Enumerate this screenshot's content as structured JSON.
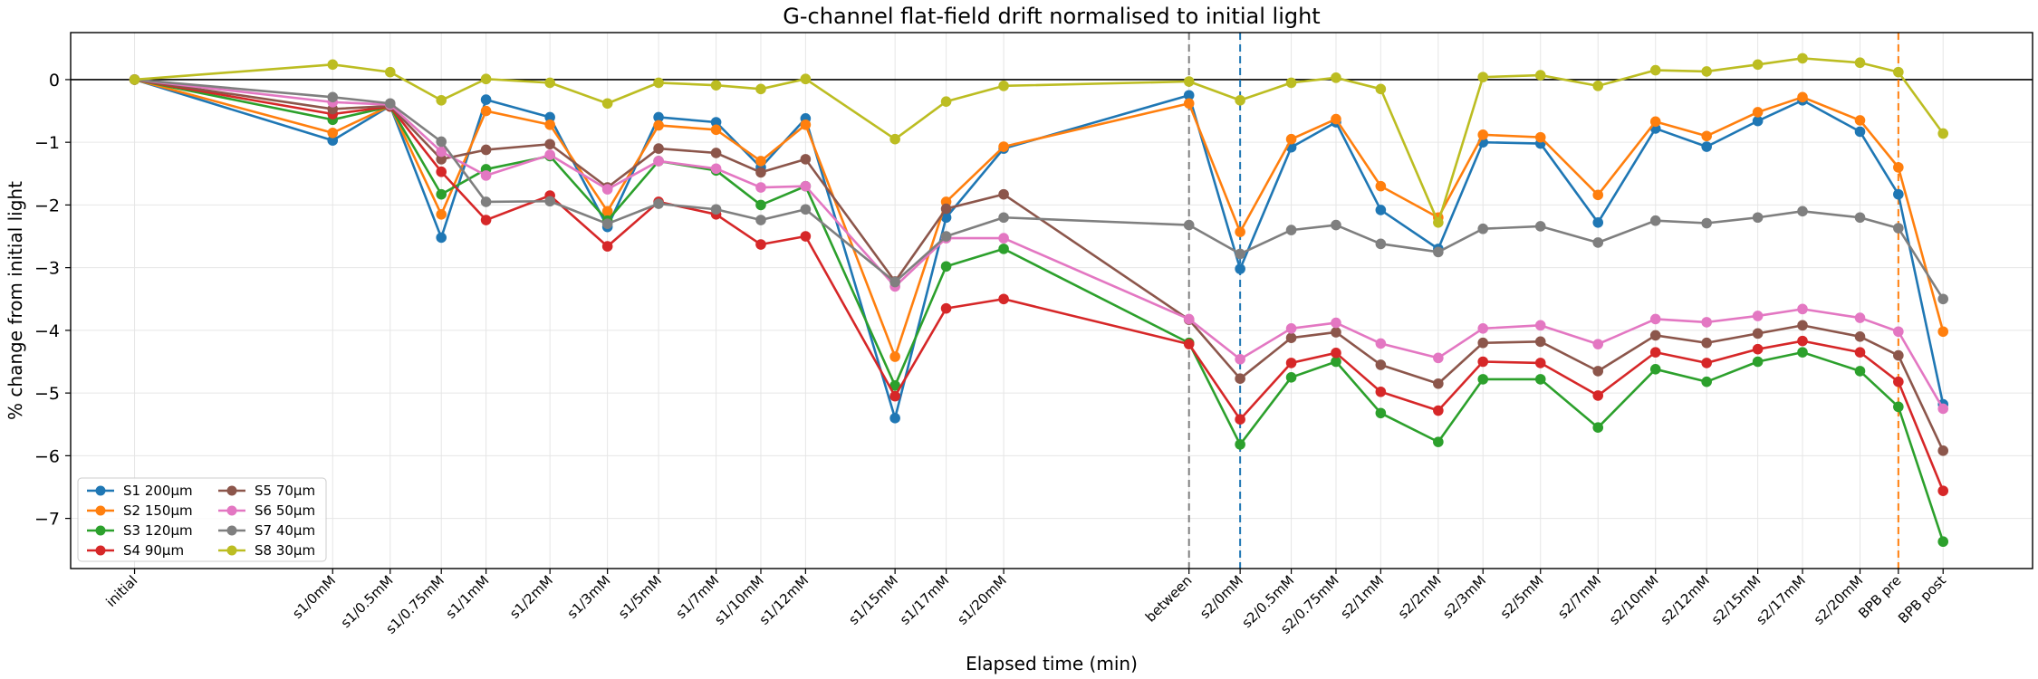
{
  "chart_data": {
    "type": "line",
    "title": "G-channel flat-field drift normalised to initial light",
    "xlabel": "Elapsed time (min)",
    "ylabel": "% change from initial light",
    "ylim": [
      -7.8,
      0.75
    ],
    "yticks": [
      0,
      -1,
      -2,
      -3,
      -4,
      -5,
      -6,
      -7
    ],
    "grid": true,
    "legend_position": "lower-left",
    "x": [
      0,
      31,
      40,
      48,
      55,
      65,
      74,
      82,
      91,
      98,
      105,
      119,
      127,
      136,
      165,
      173,
      181,
      188,
      195,
      204,
      211,
      220,
      229,
      238,
      246,
      254,
      261,
      270,
      276,
      283
    ],
    "categories": [
      "initial",
      "s1/0mM",
      "s1/0.5mM",
      "s1/0.75mM",
      "s1/1mM",
      "s1/2mM",
      "s1/3mM",
      "s1/5mM",
      "s1/7mM",
      "s1/10mM",
      "s1/12mM",
      "s1/15mM",
      "s1/17mM",
      "s1/20mM",
      "between",
      "s2/0mM",
      "s2/0.5mM",
      "s2/0.75mM",
      "s2/1mM",
      "s2/2mM",
      "s2/3mM",
      "s2/5mM",
      "s2/7mM",
      "s2/10mM",
      "s2/12mM",
      "s2/15mM",
      "s2/17mM",
      "s2/20mM",
      "BPB pre",
      "BPB post"
    ],
    "vlines": [
      {
        "x": 165,
        "color": "#7f7f7f"
      },
      {
        "x": 173,
        "color": "#1f77b4"
      },
      {
        "x": 276,
        "color": "#ff7f0e"
      }
    ],
    "hline": 0,
    "series": [
      {
        "name": "S1 200µm",
        "color": "#1f77b4",
        "values": [
          0,
          -0.97,
          -0.42,
          -2.52,
          -0.32,
          -0.6,
          -2.35,
          -0.6,
          -0.68,
          -1.4,
          -0.62,
          -5.4,
          -2.2,
          -1.1,
          -0.25,
          -3.02,
          -1.08,
          -0.68,
          -2.08,
          -2.7,
          -1.0,
          -1.02,
          -2.28,
          -0.78,
          -1.07,
          -0.66,
          -0.33,
          -0.83,
          -1.83,
          -5.18
        ]
      },
      {
        "name": "S2 150µm",
        "color": "#ff7f0e",
        "values": [
          0,
          -0.85,
          -0.42,
          -2.15,
          -0.5,
          -0.72,
          -2.1,
          -0.73,
          -0.8,
          -1.3,
          -0.72,
          -4.42,
          -1.95,
          -1.07,
          -0.38,
          -2.43,
          -0.95,
          -0.63,
          -1.7,
          -2.2,
          -0.88,
          -0.92,
          -1.84,
          -0.67,
          -0.9,
          -0.52,
          -0.28,
          -0.65,
          -1.4,
          -4.02
        ]
      },
      {
        "name": "S3 120µm",
        "color": "#2ca02c",
        "values": [
          0,
          -0.64,
          -0.43,
          -1.83,
          -1.43,
          -1.22,
          -2.25,
          -1.3,
          -1.45,
          -2.0,
          -1.7,
          -4.88,
          -2.98,
          -2.7,
          -4.2,
          -5.82,
          -4.75,
          -4.5,
          -5.32,
          -5.78,
          -4.78,
          -4.78,
          -5.55,
          -4.62,
          -4.82,
          -4.5,
          -4.35,
          -4.65,
          -5.22,
          -7.37
        ]
      },
      {
        "name": "S4 90µm",
        "color": "#d62728",
        "values": [
          0,
          -0.55,
          -0.43,
          -1.47,
          -2.24,
          -1.85,
          -2.66,
          -1.95,
          -2.15,
          -2.63,
          -2.5,
          -5.05,
          -3.65,
          -3.5,
          -4.22,
          -5.42,
          -4.52,
          -4.36,
          -4.98,
          -5.28,
          -4.5,
          -4.52,
          -5.04,
          -4.35,
          -4.52,
          -4.3,
          -4.17,
          -4.35,
          -4.82,
          -6.56
        ]
      },
      {
        "name": "S5 70µm",
        "color": "#8c564b",
        "values": [
          0,
          -0.47,
          -0.42,
          -1.27,
          -1.12,
          -1.03,
          -1.72,
          -1.1,
          -1.17,
          -1.48,
          -1.27,
          -3.22,
          -2.06,
          -1.83,
          -3.83,
          -4.77,
          -4.12,
          -4.03,
          -4.55,
          -4.85,
          -4.2,
          -4.18,
          -4.65,
          -4.08,
          -4.2,
          -4.05,
          -3.92,
          -4.1,
          -4.4,
          -5.92
        ]
      },
      {
        "name": "S6 50µm",
        "color": "#e377c2",
        "values": [
          0,
          -0.36,
          -0.4,
          -1.15,
          -1.53,
          -1.2,
          -1.75,
          -1.3,
          -1.42,
          -1.72,
          -1.7,
          -3.3,
          -2.53,
          -2.53,
          -3.82,
          -4.46,
          -3.97,
          -3.88,
          -4.21,
          -4.44,
          -3.97,
          -3.92,
          -4.22,
          -3.82,
          -3.87,
          -3.77,
          -3.66,
          -3.8,
          -4.02,
          -5.25
        ]
      },
      {
        "name": "S7 40µm",
        "color": "#7f7f7f",
        "values": [
          0,
          -0.28,
          -0.38,
          -0.99,
          -1.95,
          -1.94,
          -2.3,
          -1.98,
          -2.07,
          -2.24,
          -2.07,
          -3.23,
          -2.5,
          -2.2,
          -2.32,
          -2.78,
          -2.4,
          -2.32,
          -2.62,
          -2.75,
          -2.38,
          -2.34,
          -2.6,
          -2.25,
          -2.29,
          -2.2,
          -2.1,
          -2.2,
          -2.37,
          -3.5
        ]
      },
      {
        "name": "S8 30µm",
        "color": "#bcbd22",
        "values": [
          0,
          0.24,
          0.12,
          -0.33,
          0.01,
          -0.05,
          -0.38,
          -0.05,
          -0.09,
          -0.15,
          0.01,
          -0.95,
          -0.35,
          -0.1,
          -0.03,
          -0.33,
          -0.05,
          0.03,
          -0.15,
          -2.28,
          0.04,
          0.07,
          -0.1,
          0.15,
          0.13,
          0.24,
          0.34,
          0.27,
          0.12,
          -0.86
        ]
      }
    ]
  }
}
